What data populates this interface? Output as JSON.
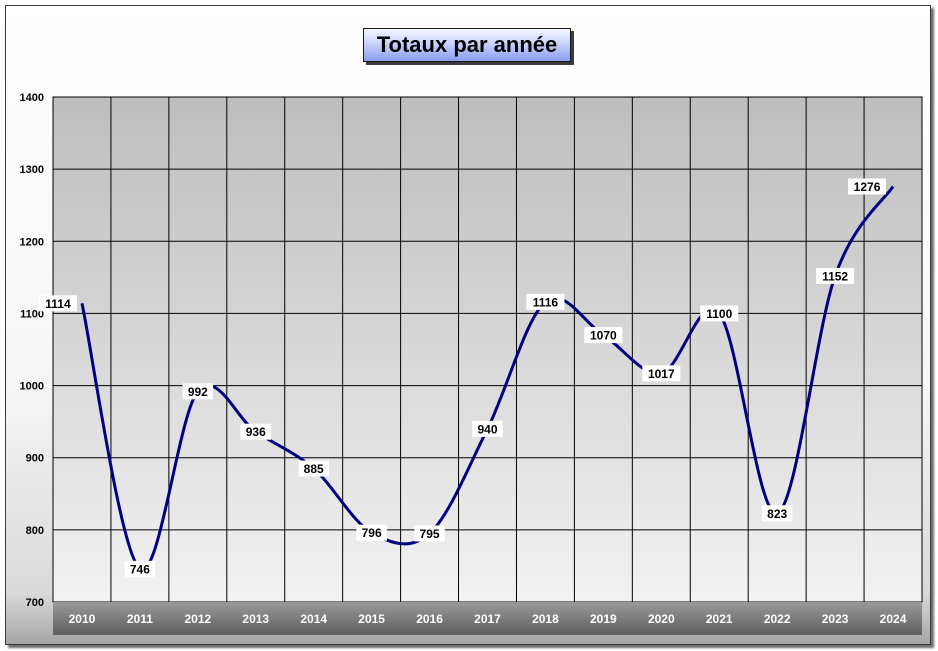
{
  "chart_data": {
    "type": "line",
    "title": "Totaux par année",
    "xlabel": "",
    "ylabel": "",
    "categories": [
      "2010",
      "2011",
      "2012",
      "2013",
      "2014",
      "2015",
      "2016",
      "2017",
      "2018",
      "2019",
      "2020",
      "2021",
      "2022",
      "2023",
      "2024"
    ],
    "series": [
      {
        "values": [
          1114,
          746,
          992,
          936,
          885,
          796,
          795,
          940,
          1116,
          1070,
          1017,
          1100,
          823,
          1152,
          1276
        ]
      }
    ],
    "ylim": [
      700,
      1400
    ],
    "yticks": [
      700,
      800,
      900,
      1000,
      1100,
      1200,
      1300,
      1400
    ],
    "grid": true,
    "smooth": true,
    "line_color": "#000080"
  }
}
